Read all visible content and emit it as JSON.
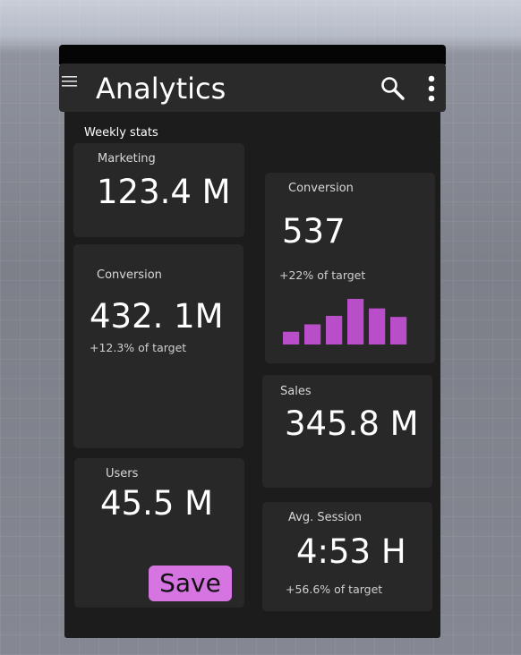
{
  "header": {
    "title": "Analytics"
  },
  "section_label": "Weekly stats",
  "cards": [
    {
      "label": "Marketing",
      "value": "123.4 M"
    },
    {
      "label": "Conversion",
      "value": "432. 1M",
      "note": "+12.3% of target"
    },
    {
      "label": "Users",
      "value": "45.5 M",
      "button": "Save"
    },
    {
      "label": "Conversion",
      "value": "537",
      "note": "+22% of target",
      "chart": {
        "type": "bar",
        "color": "#b84fc9",
        "values": [
          12,
          19,
          27,
          43,
          34,
          26
        ]
      }
    },
    {
      "label": "Sales",
      "value": "345.8 M"
    },
    {
      "label": "Avg. Session",
      "value": "4:53 H",
      "note": "+56.6% of target"
    }
  ]
}
